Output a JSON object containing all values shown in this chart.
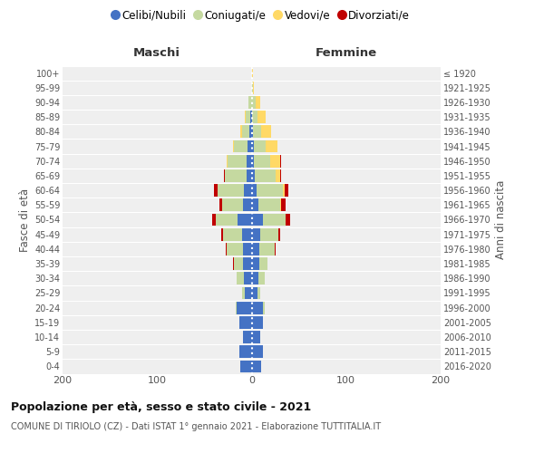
{
  "age_groups": [
    "0-4",
    "5-9",
    "10-14",
    "15-19",
    "20-24",
    "25-29",
    "30-34",
    "35-39",
    "40-44",
    "45-49",
    "50-54",
    "55-59",
    "60-64",
    "65-69",
    "70-74",
    "75-79",
    "80-84",
    "85-89",
    "90-94",
    "95-99",
    "100+"
  ],
  "birth_years": [
    "2016-2020",
    "2011-2015",
    "2006-2010",
    "2001-2005",
    "1996-2000",
    "1991-1995",
    "1986-1990",
    "1981-1985",
    "1976-1980",
    "1971-1975",
    "1966-1970",
    "1961-1965",
    "1956-1960",
    "1951-1955",
    "1946-1950",
    "1941-1945",
    "1936-1940",
    "1931-1935",
    "1926-1930",
    "1921-1925",
    "≤ 1920"
  ],
  "male": {
    "celibi": [
      12,
      13,
      9,
      13,
      16,
      7,
      8,
      9,
      9,
      10,
      15,
      9,
      8,
      5,
      5,
      4,
      2,
      1,
      0,
      0,
      0
    ],
    "coniugati": [
      0,
      0,
      0,
      0,
      1,
      3,
      8,
      10,
      17,
      20,
      23,
      22,
      28,
      23,
      20,
      15,
      8,
      5,
      3,
      0,
      0
    ],
    "vedovi": [
      0,
      0,
      0,
      0,
      0,
      0,
      0,
      0,
      0,
      0,
      0,
      0,
      0,
      0,
      1,
      1,
      2,
      1,
      0,
      0,
      0
    ],
    "divorziati": [
      0,
      0,
      0,
      0,
      0,
      0,
      0,
      1,
      1,
      2,
      4,
      3,
      4,
      1,
      0,
      0,
      0,
      0,
      0,
      0,
      0
    ]
  },
  "female": {
    "nubili": [
      10,
      12,
      9,
      12,
      12,
      6,
      7,
      8,
      8,
      9,
      12,
      7,
      5,
      3,
      2,
      2,
      1,
      0,
      0,
      0,
      0
    ],
    "coniugate": [
      0,
      0,
      0,
      0,
      2,
      3,
      7,
      9,
      16,
      19,
      24,
      23,
      28,
      22,
      18,
      13,
      9,
      6,
      4,
      1,
      0
    ],
    "vedove": [
      0,
      0,
      0,
      0,
      0,
      0,
      0,
      0,
      0,
      0,
      0,
      1,
      2,
      5,
      10,
      12,
      11,
      9,
      5,
      1,
      1
    ],
    "divorziate": [
      0,
      0,
      0,
      0,
      0,
      0,
      0,
      0,
      1,
      2,
      5,
      5,
      4,
      1,
      1,
      0,
      0,
      0,
      0,
      0,
      0
    ]
  },
  "colors": {
    "celibi": "#4472C4",
    "coniugati": "#C5D9A0",
    "vedovi": "#FFD966",
    "divorziati": "#C00000"
  },
  "xlim": 200,
  "title": "Popolazione per età, sesso e stato civile - 2021",
  "subtitle": "COMUNE DI TIRIOLO (CZ) - Dati ISTAT 1° gennaio 2021 - Elaborazione TUTTITALIA.IT",
  "ylabel": "Fasce di età",
  "ylabel_right": "Anni di nascita",
  "xlabel_left": "Maschi",
  "xlabel_right": "Femmine",
  "legend_labels": [
    "Celibi/Nubili",
    "Coniugati/e",
    "Vedovi/e",
    "Divorziati/e"
  ],
  "bg_color": "#efefef"
}
